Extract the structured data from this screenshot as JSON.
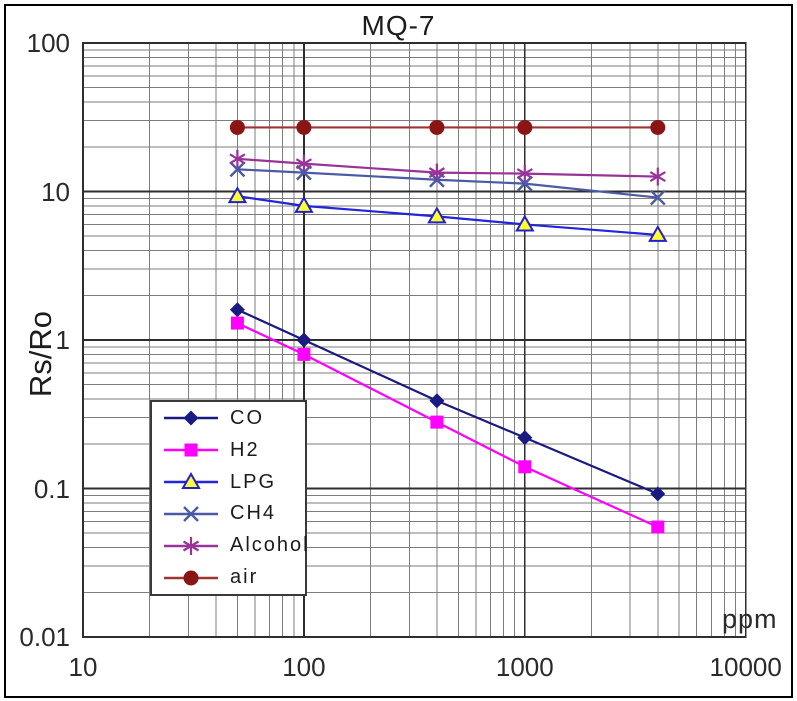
{
  "title": "MQ-7",
  "axes": {
    "y_label": "Rs/Ro",
    "x_unit_label": "ppm",
    "x_tick_labels": [
      "10",
      "100",
      "1000",
      "10000"
    ],
    "y_tick_labels": [
      "100",
      "10",
      "1",
      "0.1",
      "0.01"
    ]
  },
  "chart_data": {
    "type": "line",
    "title": "MQ-7",
    "xlabel": "ppm",
    "ylabel": "Rs/Ro",
    "x_scale": "log",
    "y_scale": "log",
    "xlim": [
      10,
      10000
    ],
    "ylim": [
      0.01,
      100
    ],
    "grid": true,
    "legend_position": "inside-lower-left",
    "x": [
      50,
      100,
      400,
      1000,
      4000
    ],
    "series": [
      {
        "name": "CO",
        "marker": "diamond",
        "line_color": "#1a1a80",
        "marker_color": "#1a1a80",
        "values": [
          1.6,
          1.0,
          0.39,
          0.22,
          0.092
        ]
      },
      {
        "name": "H2",
        "marker": "square",
        "line_color": "#ff00ff",
        "marker_color": "#ff00ff",
        "values": [
          1.3,
          0.8,
          0.28,
          0.14,
          0.055
        ]
      },
      {
        "name": "LPG",
        "marker": "triangle",
        "line_color": "#2424d9",
        "marker_color": "#ffff33",
        "marker_edge": "#2020cc",
        "values": [
          9.3,
          8.0,
          6.8,
          6.0,
          5.1
        ]
      },
      {
        "name": "CH4",
        "marker": "x",
        "line_color": "#4a5aa5",
        "marker_color": "#4a5aa5",
        "values": [
          14.1,
          13.4,
          12.0,
          11.3,
          9.1
        ]
      },
      {
        "name": "Alcohol",
        "marker": "asterisk",
        "line_color": "#993399",
        "marker_color": "#993399",
        "values": [
          16.6,
          15.4,
          13.4,
          13.2,
          12.6
        ]
      },
      {
        "name": "air",
        "marker": "circle",
        "line_color": "#a03434",
        "marker_color": "#8b1515",
        "values": [
          27,
          27,
          27,
          27,
          27
        ]
      }
    ],
    "grid_colors": {
      "minor": "#7d7d7d",
      "major": "#2e2e2e",
      "border": "#2e2e2e"
    }
  }
}
